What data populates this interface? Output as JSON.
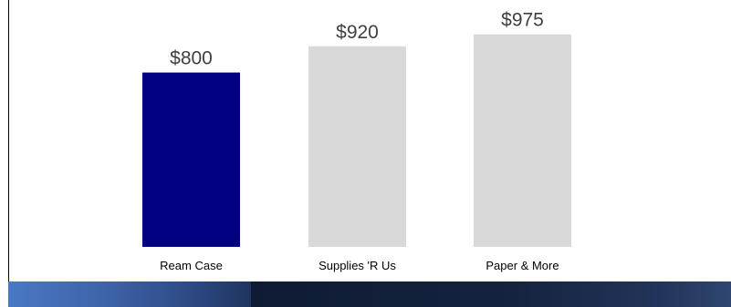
{
  "chart_data": {
    "type": "bar",
    "categories": [
      "Ream Case",
      "Supplies 'R Us",
      "Paper & More"
    ],
    "values": [
      800,
      920,
      975
    ],
    "value_labels": [
      "$800",
      "$920",
      "$975"
    ],
    "title": "",
    "xlabel": "",
    "ylabel": "",
    "ylim": [
      0,
      1050
    ],
    "grid": false,
    "legend": "none",
    "highlight_index": 0
  },
  "colors": {
    "highlight_bar": "#000080",
    "default_bar": "#d9d9d9",
    "value_text": "#404040",
    "category_text": "#000000"
  }
}
